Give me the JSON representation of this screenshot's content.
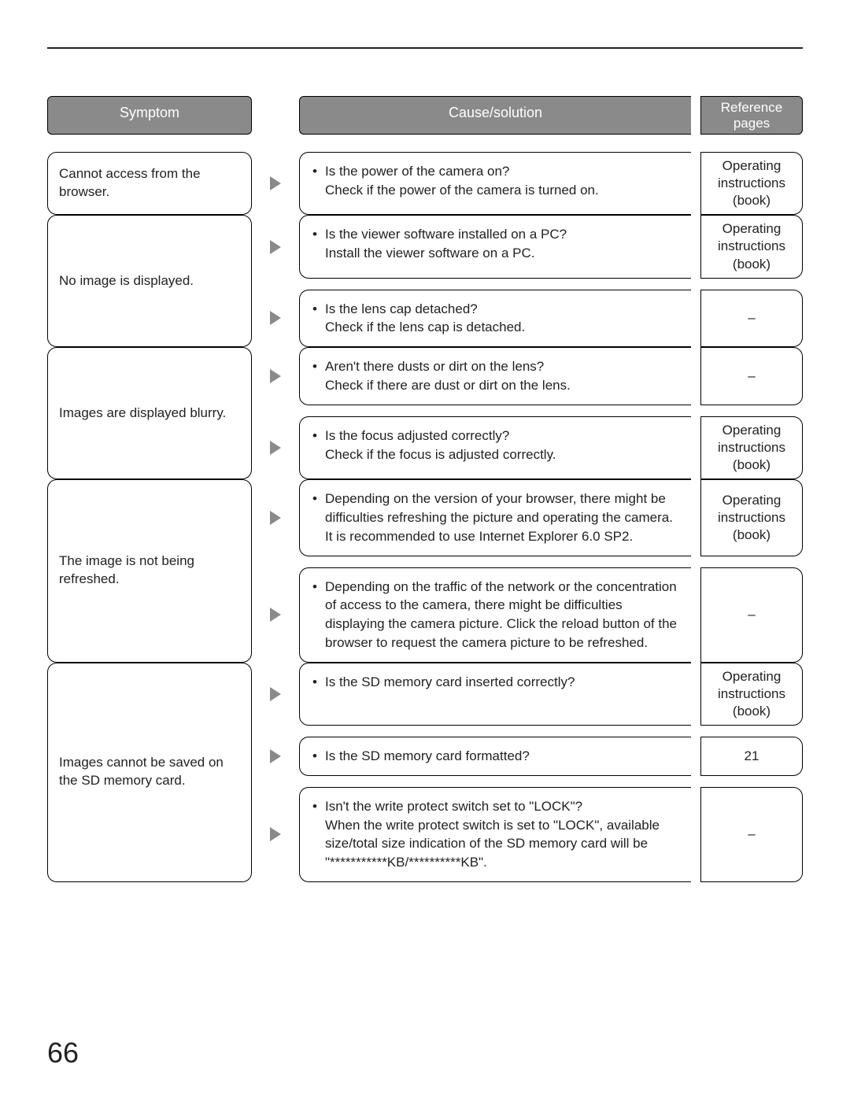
{
  "page_number": "66",
  "headers": {
    "symptom": "Symptom",
    "cause": "Cause/solution",
    "reference": "Reference pages"
  },
  "rows": [
    {
      "symptom": "Cannot access from the browser.",
      "solutions": [
        {
          "bullet": "Is the power of the camera on?",
          "detail": "Check if the power of the camera is turned on.",
          "ref": "Operating instructions (book)"
        }
      ]
    },
    {
      "symptom": "No image is displayed.",
      "solutions": [
        {
          "bullet": "Is the viewer software installed on a PC?",
          "detail": "Install the viewer software on a PC.",
          "ref": "Operating instructions (book)"
        },
        {
          "bullet": "Is the lens cap detached?",
          "detail": "Check if the lens cap is detached.",
          "ref": "–"
        }
      ]
    },
    {
      "symptom": "Images are displayed blurry.",
      "solutions": [
        {
          "bullet": "Aren't there dusts or dirt on the lens?",
          "detail": "Check if there are dust or dirt on the lens.",
          "ref": "–"
        },
        {
          "bullet": "Is the focus adjusted correctly?",
          "detail": "Check if the focus is adjusted correctly.",
          "ref": "Operating instructions (book)"
        }
      ]
    },
    {
      "symptom": "The image is not being refreshed.",
      "solutions": [
        {
          "bullet": "Depending on the version of your browser, there might be difficulties refreshing the picture and operating the camera.",
          "detail": "It is recommended to use Internet Explorer 6.0 SP2.",
          "ref": "Operating instructions (book)"
        },
        {
          "bullet": "Depending on the traffic of the network or the concentration of access to the camera, there might be difficulties displaying the camera picture. Click the reload button of the browser to request the camera picture to be refreshed.",
          "detail": "",
          "ref": "–"
        }
      ]
    },
    {
      "symptom": "Images cannot be saved on the SD memory card.",
      "solutions": [
        {
          "bullet": "Is the SD memory card inserted correctly?",
          "detail": "",
          "ref": "Operating instructions (book)"
        },
        {
          "bullet": "Is the SD memory card formatted?",
          "detail": "",
          "ref": "21"
        },
        {
          "bullet": "Isn't the write protect switch set to \"LOCK\"?",
          "detail": "When the write protect switch is set to \"LOCK\", available size/total size indication of the SD memory card will be \"***********KB/**********KB\".",
          "ref": "–"
        }
      ]
    }
  ]
}
